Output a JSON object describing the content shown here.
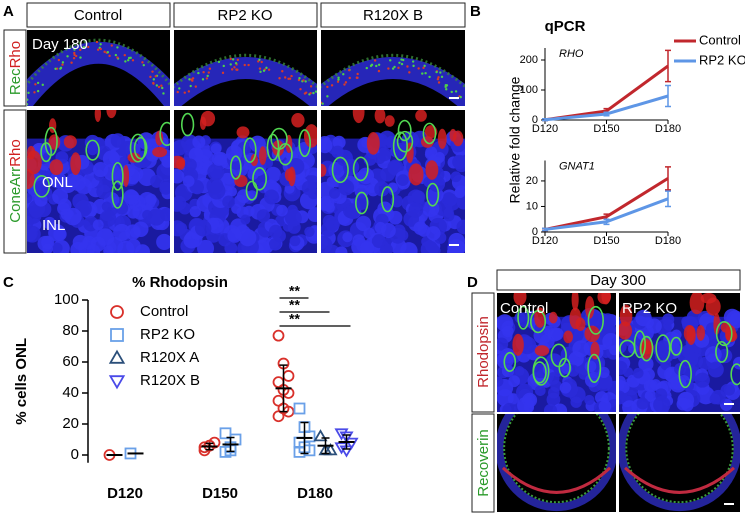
{
  "panel_a": {
    "label": "A",
    "columns": [
      "Control",
      "RP2 KO",
      "R120X B"
    ],
    "day": "Day 180",
    "row_labels": [
      [
        "Rec",
        "Rho"
      ],
      [
        "ConeArr",
        "Rho"
      ]
    ],
    "layers": [
      "ONL",
      "INL"
    ]
  },
  "panel_b": {
    "label": "B"
  },
  "panel_c": {
    "label": "C"
  },
  "panel_d": {
    "label": "D",
    "day": "Day 300",
    "columns": [
      "Control",
      "RP2 KO"
    ],
    "row_labels": [
      "Rhodopsin",
      "Recoverin"
    ]
  },
  "chart_data": [
    {
      "type": "line",
      "title": "qPCR",
      "y_label": "Relative fold change",
      "subtitle": "RHO",
      "categories": [
        "D120",
        "D150",
        "D180"
      ],
      "series": [
        {
          "name": "Control",
          "color": "#c1272d",
          "values": [
            1,
            30,
            180
          ],
          "errors": [
            3,
            8,
            52
          ]
        },
        {
          "name": "RP2 KO",
          "color": "#5e96e6",
          "values": [
            1,
            20,
            80
          ],
          "errors": [
            3,
            6,
            35
          ]
        }
      ],
      "ylim": [
        0,
        240
      ],
      "yticks": [
        0,
        100,
        200
      ],
      "legend": true
    },
    {
      "type": "line",
      "subtitle": "GNAT1",
      "categories": [
        "D120",
        "D150",
        "D180"
      ],
      "series": [
        {
          "name": "Control",
          "color": "#c1272d",
          "values": [
            1,
            6,
            21
          ],
          "errors": [
            0.4,
            1,
            4.5
          ]
        },
        {
          "name": "RP2 KO",
          "color": "#5e96e6",
          "values": [
            1,
            4,
            13
          ],
          "errors": [
            0.4,
            1,
            3
          ]
        }
      ],
      "ylim": [
        0,
        28
      ],
      "yticks": [
        0,
        10,
        20
      ],
      "legend": false
    },
    {
      "type": "dot",
      "title": "% Rhodopsin",
      "y_label": "% cells ONL",
      "categories": [
        "D120",
        "D150",
        "D180"
      ],
      "series": [
        {
          "name": "Control",
          "color": "#d9302a",
          "marker": "circle",
          "values": [
            [
              0
            ],
            [
              3,
              6,
              8,
              5
            ],
            [
              77,
              59,
              51,
              47,
              42,
              40,
              35,
              30,
              28,
              25
            ]
          ],
          "mean": [
            0,
            5.5,
            43
          ],
          "sd": [
            null,
            2,
            15
          ]
        },
        {
          "name": "RP2 KO",
          "color": "#6aa0e8",
          "marker": "square",
          "values": [
            [
              1
            ],
            [
              2,
              5,
              10,
              14,
              3
            ],
            [
              30,
              18,
              12,
              8,
              5,
              3,
              2
            ]
          ],
          "mean": [
            1,
            6.8,
            11
          ],
          "sd": [
            null,
            4.5,
            10
          ]
        },
        {
          "name": "R120X A",
          "color": "#2b4f7a",
          "marker": "triangle-up",
          "values": [
            [],
            [],
            [
              12,
              3,
              3
            ]
          ],
          "mean": [
            null,
            null,
            6
          ],
          "sd": [
            null,
            null,
            5
          ]
        },
        {
          "name": "R120X B",
          "color": "#4a4ae8",
          "marker": "triangle-down",
          "values": [
            [],
            [],
            [
              14,
              12,
              8,
              5,
              3
            ]
          ],
          "mean": [
            null,
            null,
            8.4
          ],
          "sd": [
            null,
            null,
            4.5
          ]
        }
      ],
      "ylim": [
        -5,
        100
      ],
      "yticks": [
        0,
        20,
        40,
        60,
        80,
        100
      ],
      "significance": [
        "**",
        "**",
        "**"
      ]
    }
  ]
}
